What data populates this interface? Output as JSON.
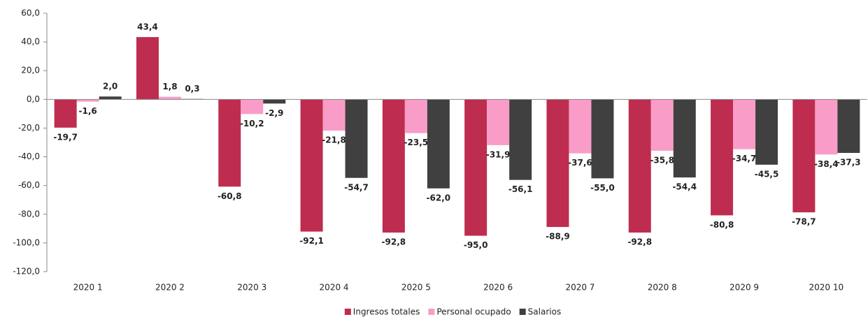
{
  "chart_data": {
    "type": "bar",
    "categories": [
      "2020 1",
      "2020 2",
      "2020 3",
      "2020 4",
      "2020 5",
      "2020 6",
      "2020 7",
      "2020 8",
      "2020 9",
      "2020 10"
    ],
    "series": [
      {
        "name": "Ingresos totales",
        "color": "#be2d4f",
        "values": [
          -19.7,
          43.4,
          -60.8,
          -92.1,
          -92.8,
          -95.0,
          -88.9,
          -92.8,
          -80.8,
          -78.7
        ],
        "value_labels": [
          "-19,7",
          "43,4",
          "-60,8",
          "-92,1",
          "-92,8",
          "-95,0",
          "-88,9",
          "-92,8",
          "-80,8",
          "-78,7"
        ]
      },
      {
        "name": "Personal ocupado",
        "color": "#f99dc8",
        "values": [
          -1.6,
          1.8,
          -10.2,
          -21.8,
          -23.5,
          -31.9,
          -37.6,
          -35.8,
          -34.7,
          -38.4
        ],
        "value_labels": [
          "-1,6",
          "1,8",
          "-10,2",
          "-21,8",
          "-23,5",
          "-31,9",
          "-37,6",
          "-35,8",
          "-34,7",
          "-38,4"
        ]
      },
      {
        "name": "Salarios",
        "color": "#404040",
        "values": [
          2.0,
          0.3,
          -2.9,
          -54.7,
          -62.0,
          -56.1,
          -55.0,
          -54.4,
          -45.5,
          -37.3
        ],
        "value_labels": [
          "2,0",
          "0,3",
          "-2,9",
          "-54,7",
          "-62,0",
          "-56,1",
          "-55,0",
          "-54,4",
          "-45,5",
          "-37,3"
        ]
      }
    ],
    "ylim": [
      -120,
      60
    ],
    "yticks": [
      {
        "value": 60,
        "label": "60,0"
      },
      {
        "value": 40,
        "label": "40,0"
      },
      {
        "value": 20,
        "label": "20,0"
      },
      {
        "value": 0,
        "label": "0,0"
      },
      {
        "value": -20,
        "label": "-20,0"
      },
      {
        "value": -40,
        "label": "-40,0"
      },
      {
        "value": -60,
        "label": "-60,0"
      },
      {
        "value": -80,
        "label": "-80,0"
      },
      {
        "value": -100,
        "label": "-100,0"
      },
      {
        "value": -120,
        "label": "-120,0"
      }
    ],
    "legend": "bottom"
  }
}
